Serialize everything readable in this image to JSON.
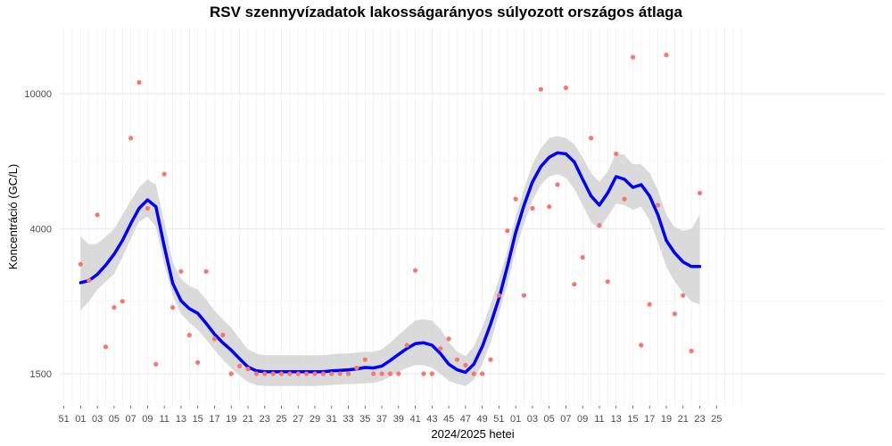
{
  "chart_data": {
    "type": "scatter",
    "title": "RSV szennyvízadatok lakosságarányos súlyozott országos átlaga",
    "xlabel": "2024/2025 hetei",
    "ylabel": "Koncentráció (GC/L)",
    "y_scale": "log",
    "y_ticks": [
      1500,
      4000,
      10000
    ],
    "y_tick_labels": [
      "1500",
      "4000",
      "10000"
    ],
    "x_tick_labels": [
      "51",
      "01",
      "03",
      "05",
      "07",
      "09",
      "11",
      "13",
      "15",
      "17",
      "19",
      "21",
      "23",
      "25",
      "27",
      "29",
      "31",
      "33",
      "35",
      "37",
      "39",
      "41",
      "43",
      "45",
      "47",
      "49",
      "51",
      "01",
      "03",
      "05",
      "07",
      "09",
      "11",
      "13",
      "15",
      "17",
      "19",
      "21",
      "23",
      "25"
    ],
    "grid": true,
    "colors": {
      "points": "#f8766d",
      "smooth": "#0000ff",
      "ribbon": "#d3d3d3"
    },
    "points": [
      [
        1,
        3150
      ],
      [
        2,
        2820
      ],
      [
        3,
        4400
      ],
      [
        4,
        1800
      ],
      [
        5,
        2350
      ],
      [
        6,
        2450
      ],
      [
        7,
        7400
      ],
      [
        8,
        10800
      ],
      [
        9,
        4600
      ],
      [
        10,
        1600
      ],
      [
        11,
        5800
      ],
      [
        12,
        2350
      ],
      [
        13,
        3000
      ],
      [
        14,
        1950
      ],
      [
        15,
        1620
      ],
      [
        16,
        3000
      ],
      [
        17,
        1900
      ],
      [
        18,
        1950
      ],
      [
        19,
        1500
      ],
      [
        20,
        1580
      ],
      [
        21,
        1550
      ],
      [
        22,
        1500
      ],
      [
        23,
        1500
      ],
      [
        24,
        1500
      ],
      [
        25,
        1500
      ],
      [
        26,
        1500
      ],
      [
        27,
        1500
      ],
      [
        28,
        1500
      ],
      [
        29,
        1500
      ],
      [
        30,
        1500
      ],
      [
        31,
        1500
      ],
      [
        32,
        1500
      ],
      [
        33,
        1500
      ],
      [
        34,
        1560
      ],
      [
        35,
        1650
      ],
      [
        36,
        1500
      ],
      [
        37,
        1500
      ],
      [
        38,
        1500
      ],
      [
        39,
        1500
      ],
      [
        40,
        1820
      ],
      [
        41,
        3020
      ],
      [
        42,
        1500
      ],
      [
        43,
        1500
      ],
      [
        44,
        1780
      ],
      [
        45,
        1900
      ],
      [
        46,
        1650
      ],
      [
        47,
        1590
      ],
      [
        48,
        1500
      ],
      [
        49,
        1500
      ],
      [
        50,
        1650
      ],
      [
        51,
        2550
      ],
      [
        52,
        3950
      ],
      [
        53,
        4900
      ],
      [
        54,
        2550
      ],
      [
        55,
        4600
      ],
      [
        56,
        10300
      ],
      [
        57,
        4650
      ],
      [
        58,
        5400
      ],
      [
        59,
        10400
      ],
      [
        60,
        2750
      ],
      [
        61,
        3300
      ],
      [
        62,
        7400
      ],
      [
        63,
        4100
      ],
      [
        64,
        2800
      ],
      [
        65,
        6650
      ],
      [
        66,
        4900
      ],
      [
        67,
        12800
      ],
      [
        68,
        1820
      ],
      [
        69,
        2400
      ],
      [
        70,
        4700
      ],
      [
        71,
        13000
      ],
      [
        72,
        2250
      ],
      [
        73,
        2550
      ],
      [
        74,
        1750
      ],
      [
        75,
        5100
      ]
    ],
    "smooth": [
      [
        1,
        2780
      ],
      [
        2,
        2820
      ],
      [
        3,
        2940
      ],
      [
        4,
        3130
      ],
      [
        5,
        3370
      ],
      [
        6,
        3700
      ],
      [
        7,
        4150
      ],
      [
        8,
        4600
      ],
      [
        9,
        4870
      ],
      [
        10,
        4650
      ],
      [
        11,
        3550
      ],
      [
        12,
        2770
      ],
      [
        13,
        2460
      ],
      [
        14,
        2330
      ],
      [
        15,
        2260
      ],
      [
        16,
        2110
      ],
      [
        17,
        1960
      ],
      [
        18,
        1850
      ],
      [
        19,
        1760
      ],
      [
        20,
        1660
      ],
      [
        21,
        1570
      ],
      [
        22,
        1530
      ],
      [
        23,
        1520
      ],
      [
        24,
        1520
      ],
      [
        25,
        1520
      ],
      [
        26,
        1520
      ],
      [
        27,
        1520
      ],
      [
        28,
        1520
      ],
      [
        29,
        1520
      ],
      [
        30,
        1520
      ],
      [
        31,
        1530
      ],
      [
        32,
        1535
      ],
      [
        33,
        1540
      ],
      [
        34,
        1550
      ],
      [
        35,
        1565
      ],
      [
        36,
        1560
      ],
      [
        37,
        1580
      ],
      [
        38,
        1640
      ],
      [
        39,
        1710
      ],
      [
        40,
        1780
      ],
      [
        41,
        1840
      ],
      [
        42,
        1850
      ],
      [
        43,
        1820
      ],
      [
        44,
        1720
      ],
      [
        45,
        1600
      ],
      [
        46,
        1540
      ],
      [
        47,
        1515
      ],
      [
        48,
        1600
      ],
      [
        49,
        1800
      ],
      [
        50,
        2100
      ],
      [
        51,
        2500
      ],
      [
        52,
        3100
      ],
      [
        53,
        3900
      ],
      [
        54,
        4700
      ],
      [
        55,
        5500
      ],
      [
        56,
        6100
      ],
      [
        57,
        6500
      ],
      [
        58,
        6700
      ],
      [
        59,
        6650
      ],
      [
        60,
        6300
      ],
      [
        61,
        5600
      ],
      [
        62,
        5000
      ],
      [
        63,
        4700
      ],
      [
        64,
        5100
      ],
      [
        65,
        5700
      ],
      [
        66,
        5600
      ],
      [
        67,
        5300
      ],
      [
        68,
        5400
      ],
      [
        69,
        5000
      ],
      [
        70,
        4400
      ],
      [
        71,
        3700
      ],
      [
        72,
        3400
      ],
      [
        73,
        3200
      ],
      [
        74,
        3100
      ],
      [
        75,
        3100
      ]
    ],
    "ribbon_lower": [
      [
        1,
        2300
      ],
      [
        2,
        2450
      ],
      [
        3,
        2650
      ],
      [
        4,
        2800
      ],
      [
        5,
        2950
      ],
      [
        6,
        3300
      ],
      [
        7,
        3750
      ],
      [
        8,
        4200
      ],
      [
        9,
        4350
      ],
      [
        10,
        4050
      ],
      [
        11,
        3150
      ],
      [
        12,
        2550
      ],
      [
        13,
        2250
      ],
      [
        14,
        2120
      ],
      [
        15,
        2020
      ],
      [
        16,
        1890
      ],
      [
        17,
        1760
      ],
      [
        18,
        1650
      ],
      [
        19,
        1560
      ],
      [
        20,
        1480
      ],
      [
        21,
        1420
      ],
      [
        22,
        1390
      ],
      [
        23,
        1380
      ],
      [
        24,
        1380
      ],
      [
        25,
        1380
      ],
      [
        26,
        1380
      ],
      [
        27,
        1380
      ],
      [
        28,
        1380
      ],
      [
        29,
        1380
      ],
      [
        30,
        1385
      ],
      [
        31,
        1390
      ],
      [
        32,
        1395
      ],
      [
        33,
        1400
      ],
      [
        34,
        1400
      ],
      [
        35,
        1405
      ],
      [
        36,
        1410
      ],
      [
        37,
        1430
      ],
      [
        38,
        1470
      ],
      [
        39,
        1520
      ],
      [
        40,
        1560
      ],
      [
        41,
        1590
      ],
      [
        42,
        1590
      ],
      [
        43,
        1560
      ],
      [
        44,
        1500
      ],
      [
        45,
        1430
      ],
      [
        46,
        1400
      ],
      [
        47,
        1380
      ],
      [
        48,
        1440
      ],
      [
        49,
        1600
      ],
      [
        50,
        1850
      ],
      [
        51,
        2250
      ],
      [
        52,
        2750
      ],
      [
        53,
        3450
      ],
      [
        54,
        4150
      ],
      [
        55,
        4850
      ],
      [
        56,
        5400
      ],
      [
        57,
        5700
      ],
      [
        58,
        5800
      ],
      [
        59,
        5650
      ],
      [
        60,
        5250
      ],
      [
        61,
        4700
      ],
      [
        62,
        4200
      ],
      [
        63,
        4000
      ],
      [
        64,
        4350
      ],
      [
        65,
        4750
      ],
      [
        66,
        4700
      ],
      [
        67,
        4550
      ],
      [
        68,
        4650
      ],
      [
        69,
        4250
      ],
      [
        70,
        3650
      ],
      [
        71,
        3100
      ],
      [
        72,
        2800
      ],
      [
        73,
        2600
      ],
      [
        74,
        2450
      ],
      [
        75,
        2400
      ]
    ],
    "ribbon_upper": [
      [
        1,
        3800
      ],
      [
        2,
        3600
      ],
      [
        3,
        3620
      ],
      [
        4,
        3800
      ],
      [
        5,
        4000
      ],
      [
        6,
        4400
      ],
      [
        7,
        4850
      ],
      [
        8,
        5300
      ],
      [
        9,
        5600
      ],
      [
        10,
        5400
      ],
      [
        11,
        4200
      ],
      [
        12,
        3200
      ],
      [
        13,
        2850
      ],
      [
        14,
        2720
      ],
      [
        15,
        2650
      ],
      [
        16,
        2480
      ],
      [
        17,
        2300
      ],
      [
        18,
        2170
      ],
      [
        19,
        2050
      ],
      [
        20,
        1900
      ],
      [
        21,
        1770
      ],
      [
        22,
        1720
      ],
      [
        23,
        1700
      ],
      [
        24,
        1700
      ],
      [
        25,
        1700
      ],
      [
        26,
        1700
      ],
      [
        27,
        1700
      ],
      [
        28,
        1700
      ],
      [
        29,
        1700
      ],
      [
        30,
        1700
      ],
      [
        31,
        1710
      ],
      [
        32,
        1720
      ],
      [
        33,
        1720
      ],
      [
        34,
        1730
      ],
      [
        35,
        1740
      ],
      [
        36,
        1740
      ],
      [
        37,
        1770
      ],
      [
        38,
        1850
      ],
      [
        39,
        1950
      ],
      [
        40,
        2050
      ],
      [
        41,
        2150
      ],
      [
        42,
        2170
      ],
      [
        43,
        2150
      ],
      [
        44,
        2030
      ],
      [
        45,
        1860
      ],
      [
        46,
        1740
      ],
      [
        47,
        1690
      ],
      [
        48,
        1800
      ],
      [
        49,
        2050
      ],
      [
        50,
        2400
      ],
      [
        51,
        2850
      ],
      [
        52,
        3450
      ],
      [
        53,
        4350
      ],
      [
        54,
        5250
      ],
      [
        55,
        6200
      ],
      [
        56,
        6900
      ],
      [
        57,
        7400
      ],
      [
        58,
        7500
      ],
      [
        59,
        7400
      ],
      [
        60,
        7100
      ],
      [
        61,
        6500
      ],
      [
        62,
        5850
      ],
      [
        63,
        5500
      ],
      [
        64,
        5900
      ],
      [
        65,
        6700
      ],
      [
        66,
        6600
      ],
      [
        67,
        6200
      ],
      [
        68,
        6200
      ],
      [
        69,
        5850
      ],
      [
        70,
        5200
      ],
      [
        71,
        4400
      ],
      [
        72,
        4050
      ],
      [
        73,
        3950
      ],
      [
        74,
        4000
      ],
      [
        75,
        4400
      ]
    ]
  }
}
